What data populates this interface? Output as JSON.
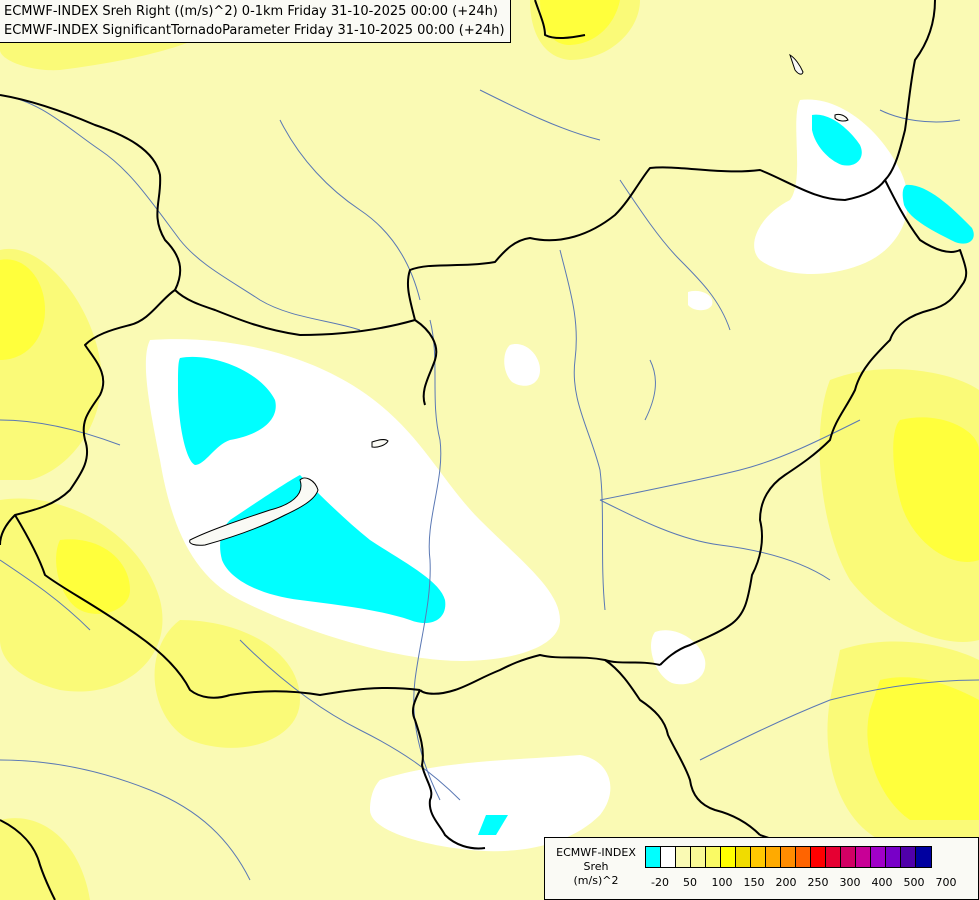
{
  "title": {
    "line1": "ECMWF-INDEX Sreh Right ((m/s)^2) 0-1km Friday 31-10-2025 00:00 (+24h)",
    "line2": "ECMWF-INDEX SignificantTornadoParameter Friday 31-10-2025 00:00 (+24h)"
  },
  "legend": {
    "line1": "ECMWF-INDEX",
    "line2": "Sreh",
    "line3": "(m/s)^2",
    "colors": [
      "#00ffff",
      "#ffffff",
      "#fafab4",
      "#fafa96",
      "#fafa64",
      "#ffff00",
      "#f0dc00",
      "#ffc800",
      "#ffaa00",
      "#ff8c00",
      "#ff6400",
      "#ff0000",
      "#e60032",
      "#d20064",
      "#c80096",
      "#a000c8",
      "#7800c8",
      "#5000aa",
      "#0000a0"
    ],
    "ticks": [
      "-20",
      "50",
      "100",
      "150",
      "200",
      "250",
      "300",
      "400",
      "500",
      "700"
    ]
  },
  "fields": {
    "base_color": "#fafab4",
    "low_color": "#ffffff",
    "negative_color": "#00ffff",
    "high_color": "#fafa64",
    "peak_color": "#ffff00"
  }
}
